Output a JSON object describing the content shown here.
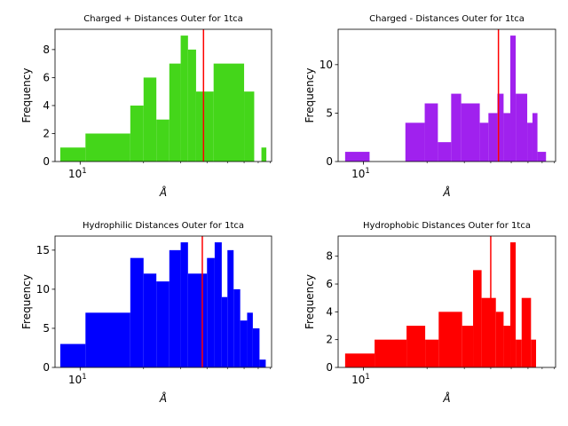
{
  "chart_data": [
    {
      "type": "bar",
      "title": "Charged + Distances Outer for 1tca",
      "xlabel": "Å",
      "ylabel": "Frequency",
      "xscale": "log",
      "xticks": [
        {
          "value": 10,
          "base": "10",
          "exp": "1"
        }
      ],
      "yticks": [
        0,
        2,
        4,
        6,
        8
      ],
      "ylim": [
        0,
        9.45
      ],
      "xlim": [
        7.6,
        81
      ],
      "color": "#44d61a",
      "vline": 38.5,
      "bins": [
        {
          "x0": 8.05,
          "x1": 10.6,
          "value": 1
        },
        {
          "x0": 10.6,
          "x1": 17.3,
          "value": 2
        },
        {
          "x0": 17.3,
          "x1": 20.0,
          "value": 4
        },
        {
          "x0": 20.0,
          "x1": 23.0,
          "value": 6
        },
        {
          "x0": 23.0,
          "x1": 26.5,
          "value": 3
        },
        {
          "x0": 26.5,
          "x1": 30.0,
          "value": 7
        },
        {
          "x0": 30.0,
          "x1": 32.5,
          "value": 9
        },
        {
          "x0": 32.5,
          "x1": 35.5,
          "value": 8
        },
        {
          "x0": 35.5,
          "x1": 43.0,
          "value": 5
        },
        {
          "x0": 43.0,
          "x1": 60.0,
          "value": 7
        },
        {
          "x0": 60.0,
          "x1": 67.0,
          "value": 5
        },
        {
          "x0": 72.5,
          "x1": 76.5,
          "value": 1
        }
      ]
    },
    {
      "type": "bar",
      "title": "Charged - Distances Outer for 1tca",
      "xlabel": "Å",
      "ylabel": "Frequency",
      "xscale": "log",
      "xticks": [
        {
          "value": 10,
          "base": "10",
          "exp": "1"
        }
      ],
      "yticks": [
        0,
        5,
        10
      ],
      "ylim": [
        0,
        13.65
      ],
      "xlim": [
        7.6,
        81
      ],
      "color": "#a021ee",
      "vline": 43.5,
      "bins": [
        {
          "x0": 8.2,
          "x1": 10.7,
          "value": 1
        },
        {
          "x0": 15.8,
          "x1": 19.5,
          "value": 4
        },
        {
          "x0": 19.5,
          "x1": 22.5,
          "value": 6
        },
        {
          "x0": 22.5,
          "x1": 26.0,
          "value": 2
        },
        {
          "x0": 26.0,
          "x1": 29.0,
          "value": 7
        },
        {
          "x0": 29.0,
          "x1": 35.5,
          "value": 6
        },
        {
          "x0": 35.5,
          "x1": 39.0,
          "value": 4
        },
        {
          "x0": 39.0,
          "x1": 43.0,
          "value": 5
        },
        {
          "x0": 43.0,
          "x1": 46.0,
          "value": 7
        },
        {
          "x0": 46.0,
          "x1": 49.5,
          "value": 5
        },
        {
          "x0": 49.5,
          "x1": 52.5,
          "value": 13
        },
        {
          "x0": 52.5,
          "x1": 59.5,
          "value": 7
        },
        {
          "x0": 59.5,
          "x1": 63.0,
          "value": 4
        },
        {
          "x0": 63.0,
          "x1": 66.5,
          "value": 5
        },
        {
          "x0": 66.5,
          "x1": 73.0,
          "value": 1
        }
      ]
    },
    {
      "type": "bar",
      "title": "Hydrophilic Distances Outer for 1tca",
      "xlabel": "Å",
      "ylabel": "Frequency",
      "xscale": "log",
      "xticks": [
        {
          "value": 10,
          "base": "10",
          "exp": "1"
        }
      ],
      "yticks": [
        0,
        5,
        10,
        15
      ],
      "ylim": [
        0,
        16.8
      ],
      "xlim": [
        7.6,
        81
      ],
      "color": "#0000ff",
      "vline": 38.0,
      "bins": [
        {
          "x0": 8.05,
          "x1": 10.6,
          "value": 3
        },
        {
          "x0": 10.6,
          "x1": 17.3,
          "value": 7
        },
        {
          "x0": 17.3,
          "x1": 20.0,
          "value": 14
        },
        {
          "x0": 20.0,
          "x1": 23.0,
          "value": 12
        },
        {
          "x0": 23.0,
          "x1": 26.5,
          "value": 11
        },
        {
          "x0": 26.5,
          "x1": 30.0,
          "value": 15
        },
        {
          "x0": 30.0,
          "x1": 32.5,
          "value": 16
        },
        {
          "x0": 32.5,
          "x1": 40.0,
          "value": 12
        },
        {
          "x0": 40.0,
          "x1": 43.5,
          "value": 14
        },
        {
          "x0": 43.5,
          "x1": 47.0,
          "value": 16
        },
        {
          "x0": 47.0,
          "x1": 50.0,
          "value": 9
        },
        {
          "x0": 50.0,
          "x1": 53.5,
          "value": 15
        },
        {
          "x0": 53.5,
          "x1": 57.5,
          "value": 10
        },
        {
          "x0": 57.5,
          "x1": 62.0,
          "value": 6
        },
        {
          "x0": 62.0,
          "x1": 66.0,
          "value": 7
        },
        {
          "x0": 66.0,
          "x1": 71.0,
          "value": 5
        },
        {
          "x0": 71.0,
          "x1": 76.0,
          "value": 1
        }
      ]
    },
    {
      "type": "bar",
      "title": "Hydrophobic Distances Outer for 1tca",
      "xlabel": "Å",
      "ylabel": "Frequency",
      "xscale": "log",
      "xticks": [
        {
          "value": 10,
          "base": "10",
          "exp": "1"
        }
      ],
      "yticks": [
        0,
        2,
        4,
        6,
        8
      ],
      "ylim": [
        0,
        9.45
      ],
      "xlim": [
        7.6,
        81
      ],
      "color": "#ff0000",
      "vline": 40.0,
      "bins": [
        {
          "x0": 8.2,
          "x1": 11.3,
          "value": 1
        },
        {
          "x0": 11.3,
          "x1": 16.0,
          "value": 2
        },
        {
          "x0": 16.0,
          "x1": 19.6,
          "value": 3
        },
        {
          "x0": 19.6,
          "x1": 22.7,
          "value": 2
        },
        {
          "x0": 22.7,
          "x1": 29.3,
          "value": 4
        },
        {
          "x0": 29.3,
          "x1": 33.0,
          "value": 3
        },
        {
          "x0": 33.0,
          "x1": 36.2,
          "value": 7
        },
        {
          "x0": 36.2,
          "x1": 42.3,
          "value": 5
        },
        {
          "x0": 42.3,
          "x1": 46.0,
          "value": 4
        },
        {
          "x0": 46.0,
          "x1": 49.5,
          "value": 3
        },
        {
          "x0": 49.5,
          "x1": 52.5,
          "value": 9
        },
        {
          "x0": 52.5,
          "x1": 56.0,
          "value": 2
        },
        {
          "x0": 56.0,
          "x1": 62.0,
          "value": 5
        },
        {
          "x0": 62.0,
          "x1": 65.5,
          "value": 2
        }
      ]
    }
  ]
}
